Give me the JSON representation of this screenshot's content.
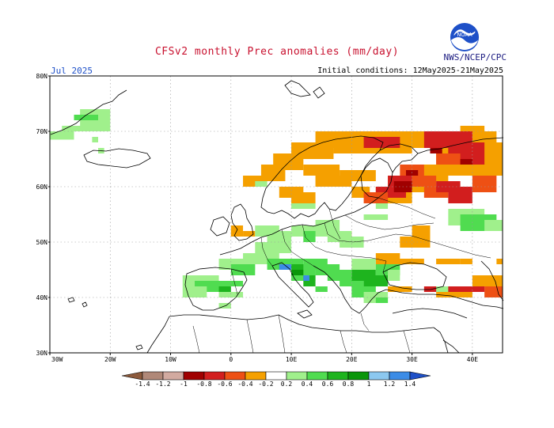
{
  "title": "CFSv2 monthly Prec anomalies (mm/day)",
  "agency": "NWS/NCEP/CPC",
  "logo_text": "NOAA",
  "month_label": "Jul 2025",
  "initial_conditions": "Initial conditions: 12May2025-21May2025",
  "lat_labels": [
    "80N",
    "70N",
    "60N",
    "50N",
    "40N",
    "30N"
  ],
  "lon_labels": [
    "30W",
    "20W",
    "10W",
    "0",
    "10E",
    "20E",
    "30E",
    "40E"
  ],
  "colorbar": {
    "labels": [
      "-1.4",
      "-1.2",
      "-1",
      "-0.8",
      "-0.6",
      "-0.4",
      "-0.2",
      "0.2",
      "0.4",
      "0.6",
      "0.8",
      "1",
      "1.2",
      "1.4"
    ],
    "colors": [
      "#8c5a3c",
      "#b08878",
      "#d2aaa0",
      "#a00000",
      "#d21e1e",
      "#ee5014",
      "#f5a000",
      "#ffffff",
      "#a0f08c",
      "#50dc50",
      "#1eb41e",
      "#0a960a",
      "#8cc8f0",
      "#3c8ce6",
      "#1e50c8"
    ]
  },
  "chart_data": {
    "type": "heatmap",
    "variable": "Prec anomalies (mm/day)",
    "lon_range": [
      -30,
      45
    ],
    "lat_range": [
      30,
      80
    ],
    "anomaly_areas": [
      {
        "region": "Scandinavia / Finland",
        "anomaly": "-0.2 to -0.6"
      },
      {
        "region": "Western Russia",
        "anomaly": "-0.4 to -0.8"
      },
      {
        "region": "Southern Finland / Baltic",
        "anomaly": "-0.6 to -0.8"
      },
      {
        "region": "Central Europe / Alps / Balkans",
        "anomaly": "0.2 to 0.8"
      },
      {
        "region": "Iberia",
        "anomaly": "0.2 to 0.6"
      },
      {
        "region": "Iceland / Greenland coast",
        "anomaly": "0.2 to 0.4"
      },
      {
        "region": "Anatolia / Caucasus",
        "anomaly": "-0.2 to -0.6"
      }
    ]
  }
}
